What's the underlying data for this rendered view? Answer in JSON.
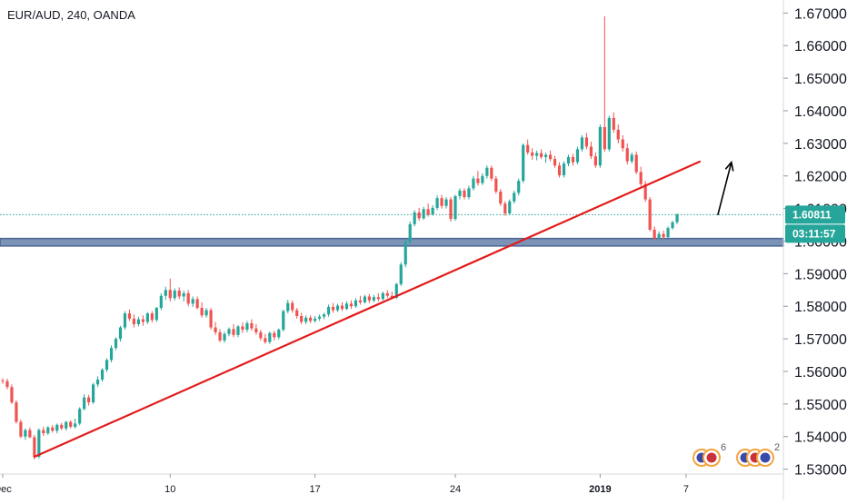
{
  "header": {
    "title": "EUR/AUD, 240, OANDA"
  },
  "colors": {
    "up": "#26a69a",
    "down": "#ef5350",
    "trendline": "#e31b1b",
    "zone": "#7c93b8",
    "zone_border": "#4a6595",
    "last_price_line": "#26a69a",
    "last_price_tag": "#26a69a",
    "countdown_tag": "#26a69a",
    "arrow": "#000000",
    "axis_text": "#131722"
  },
  "chart_data": {
    "type": "candlestick",
    "title": "EUR/AUD, 240, OANDA",
    "xlabel": "",
    "ylabel": "",
    "ylim": [
      1.5285,
      1.674
    ],
    "y_ticks": [
      "1.53000",
      "1.54000",
      "1.55000",
      "1.56000",
      "1.57000",
      "1.58000",
      "1.59000",
      "1.60000",
      "1.61000",
      "1.62000",
      "1.63000",
      "1.64000",
      "1.65000",
      "1.66000",
      "1.67000"
    ],
    "x_ticks": [
      {
        "label": "Dec",
        "bar": 0,
        "bold": false
      },
      {
        "label": "10",
        "bar": 37,
        "bold": false
      },
      {
        "label": "17",
        "bar": 69,
        "bold": false
      },
      {
        "label": "24",
        "bar": 100,
        "bold": false
      },
      {
        "label": "2019",
        "bar": 132,
        "bold": true
      },
      {
        "label": "7",
        "bar": 151,
        "bold": false
      }
    ],
    "last_price": "1.60811",
    "last_price_value": 1.60811,
    "countdown": "03:11:57",
    "support_zone": [
      1.5985,
      1.6008
    ],
    "trendline": {
      "start": {
        "bar": 7,
        "price": 1.5338
      },
      "end": {
        "bar": 154,
        "price": 1.6244
      }
    },
    "forecast_arrow": {
      "start": {
        "bar": 158,
        "price": 1.608
      },
      "end": {
        "bar": 161,
        "price": 1.6242
      }
    },
    "indicator_counts": [
      "6",
      "2"
    ],
    "bars": [
      [
        1.5572,
        1.5579,
        1.5562,
        1.557
      ],
      [
        1.557,
        1.5578,
        1.5545,
        1.5552
      ],
      [
        1.5552,
        1.556,
        1.55,
        1.5505
      ],
      [
        1.5505,
        1.5512,
        1.544,
        1.5445
      ],
      [
        1.5445,
        1.5452,
        1.5395,
        1.54
      ],
      [
        1.54,
        1.5425,
        1.539,
        1.542
      ],
      [
        1.542,
        1.5428,
        1.5395,
        1.5398
      ],
      [
        1.5398,
        1.5405,
        1.533,
        1.5338
      ],
      [
        1.5338,
        1.5425,
        1.5333,
        1.542
      ],
      [
        1.542,
        1.543,
        1.5402,
        1.541
      ],
      [
        1.541,
        1.5432,
        1.5405,
        1.5428
      ],
      [
        1.5428,
        1.5435,
        1.5412,
        1.5418
      ],
      [
        1.5418,
        1.544,
        1.541,
        1.5436
      ],
      [
        1.5436,
        1.5442,
        1.542,
        1.5425
      ],
      [
        1.5425,
        1.5448,
        1.5418,
        1.5445
      ],
      [
        1.5445,
        1.545,
        1.5425,
        1.543
      ],
      [
        1.543,
        1.5455,
        1.5425,
        1.544
      ],
      [
        1.544,
        1.549,
        1.5435,
        1.5485
      ],
      [
        1.5485,
        1.553,
        1.548,
        1.552
      ],
      [
        1.552,
        1.5528,
        1.5495,
        1.5505
      ],
      [
        1.5505,
        1.5565,
        1.55,
        1.556
      ],
      [
        1.556,
        1.5585,
        1.5552,
        1.5575
      ],
      [
        1.5575,
        1.561,
        1.5568,
        1.5605
      ],
      [
        1.5605,
        1.564,
        1.5598,
        1.5635
      ],
      [
        1.5635,
        1.568,
        1.5628,
        1.5672
      ],
      [
        1.5672,
        1.5705,
        1.5665,
        1.57
      ],
      [
        1.57,
        1.574,
        1.5692,
        1.5735
      ],
      [
        1.5735,
        1.5785,
        1.5728,
        1.5778
      ],
      [
        1.5778,
        1.579,
        1.5755,
        1.5762
      ],
      [
        1.5762,
        1.5775,
        1.5735,
        1.5745
      ],
      [
        1.5745,
        1.5768,
        1.5738,
        1.576
      ],
      [
        1.576,
        1.5772,
        1.574,
        1.5752
      ],
      [
        1.5752,
        1.5782,
        1.5745,
        1.5778
      ],
      [
        1.5778,
        1.5785,
        1.575,
        1.5758
      ],
      [
        1.5758,
        1.5798,
        1.5752,
        1.5795
      ],
      [
        1.5795,
        1.584,
        1.5788,
        1.5832
      ],
      [
        1.5832,
        1.586,
        1.582,
        1.585
      ],
      [
        1.585,
        1.5885,
        1.5815,
        1.5825
      ],
      [
        1.5825,
        1.5855,
        1.5818,
        1.5848
      ],
      [
        1.5848,
        1.5858,
        1.5822,
        1.583
      ],
      [
        1.583,
        1.5848,
        1.5815,
        1.584
      ],
      [
        1.584,
        1.585,
        1.58,
        1.5808
      ],
      [
        1.5808,
        1.583,
        1.5798,
        1.5822
      ],
      [
        1.5822,
        1.583,
        1.579,
        1.5795
      ],
      [
        1.5795,
        1.5812,
        1.5765,
        1.5772
      ],
      [
        1.5772,
        1.5795,
        1.5765,
        1.5788
      ],
      [
        1.5788,
        1.5795,
        1.5728,
        1.5735
      ],
      [
        1.5735,
        1.5752,
        1.5712,
        1.572
      ],
      [
        1.572,
        1.573,
        1.569,
        1.5695
      ],
      [
        1.5695,
        1.5722,
        1.5688,
        1.5715
      ],
      [
        1.5715,
        1.5735,
        1.5708,
        1.573
      ],
      [
        1.573,
        1.5745,
        1.5705,
        1.5712
      ],
      [
        1.5712,
        1.5742,
        1.5705,
        1.5738
      ],
      [
        1.5738,
        1.575,
        1.5718,
        1.5728
      ],
      [
        1.5728,
        1.5755,
        1.572,
        1.5748
      ],
      [
        1.5748,
        1.576,
        1.5725,
        1.5732
      ],
      [
        1.5732,
        1.5745,
        1.5712,
        1.572
      ],
      [
        1.572,
        1.5728,
        1.5695,
        1.5702
      ],
      [
        1.5702,
        1.5715,
        1.5685,
        1.569
      ],
      [
        1.569,
        1.5722,
        1.5685,
        1.5718
      ],
      [
        1.5718,
        1.5725,
        1.5695,
        1.5705
      ],
      [
        1.5705,
        1.5732,
        1.5698,
        1.5728
      ],
      [
        1.5728,
        1.579,
        1.5722,
        1.5785
      ],
      [
        1.5785,
        1.582,
        1.5778,
        1.581
      ],
      [
        1.581,
        1.5818,
        1.578,
        1.5788
      ],
      [
        1.5788,
        1.5795,
        1.5762,
        1.577
      ],
      [
        1.577,
        1.578,
        1.5745,
        1.5752
      ],
      [
        1.5752,
        1.5772,
        1.5745,
        1.5765
      ],
      [
        1.5765,
        1.5772,
        1.5748,
        1.5755
      ],
      [
        1.5755,
        1.577,
        1.575,
        1.5762
      ],
      [
        1.5762,
        1.5775,
        1.5755,
        1.5768
      ],
      [
        1.5768,
        1.578,
        1.576,
        1.5775
      ],
      [
        1.5775,
        1.5805,
        1.5768,
        1.5798
      ],
      [
        1.5798,
        1.581,
        1.578,
        1.5788
      ],
      [
        1.5788,
        1.5808,
        1.5782,
        1.5802
      ],
      [
        1.5802,
        1.5812,
        1.5785,
        1.5792
      ],
      [
        1.5792,
        1.5815,
        1.5788,
        1.5808
      ],
      [
        1.5808,
        1.5818,
        1.5792,
        1.58
      ],
      [
        1.58,
        1.5825,
        1.5795,
        1.5818
      ],
      [
        1.5818,
        1.5832,
        1.5805,
        1.5812
      ],
      [
        1.5812,
        1.5835,
        1.5808,
        1.583
      ],
      [
        1.583,
        1.5838,
        1.581,
        1.5818
      ],
      [
        1.5818,
        1.5835,
        1.5812,
        1.5828
      ],
      [
        1.5828,
        1.584,
        1.5815,
        1.5822
      ],
      [
        1.5822,
        1.5845,
        1.5818,
        1.584
      ],
      [
        1.584,
        1.585,
        1.5825,
        1.5832
      ],
      [
        1.5832,
        1.5845,
        1.5822,
        1.5826
      ],
      [
        1.5826,
        1.5872,
        1.5822,
        1.5868
      ],
      [
        1.5868,
        1.5935,
        1.5862,
        1.5928
      ],
      [
        1.5928,
        1.6005,
        1.592,
        1.5998
      ],
      [
        1.5998,
        1.606,
        1.599,
        1.6052
      ],
      [
        1.6052,
        1.6095,
        1.6045,
        1.6088
      ],
      [
        1.6088,
        1.6102,
        1.6062,
        1.607
      ],
      [
        1.607,
        1.6105,
        1.6065,
        1.6098
      ],
      [
        1.6098,
        1.6115,
        1.6075,
        1.6082
      ],
      [
        1.6082,
        1.611,
        1.6078,
        1.6102
      ],
      [
        1.6102,
        1.614,
        1.6095,
        1.6132
      ],
      [
        1.6132,
        1.6142,
        1.61,
        1.6108
      ],
      [
        1.6108,
        1.6135,
        1.61,
        1.6128
      ],
      [
        1.6128,
        1.6135,
        1.606,
        1.6068
      ],
      [
        1.6068,
        1.6142,
        1.6062,
        1.6138
      ],
      [
        1.6138,
        1.6162,
        1.6128,
        1.6155
      ],
      [
        1.6155,
        1.6162,
        1.6128,
        1.6135
      ],
      [
        1.6135,
        1.617,
        1.6128,
        1.6162
      ],
      [
        1.6162,
        1.62,
        1.6155,
        1.6192
      ],
      [
        1.6192,
        1.6215,
        1.617,
        1.6178
      ],
      [
        1.6178,
        1.6208,
        1.6172,
        1.62
      ],
      [
        1.62,
        1.6232,
        1.6192,
        1.6225
      ],
      [
        1.6225,
        1.6232,
        1.6185,
        1.6192
      ],
      [
        1.6192,
        1.62,
        1.6145,
        1.6152
      ],
      [
        1.6152,
        1.616,
        1.6108,
        1.6115
      ],
      [
        1.6115,
        1.6122,
        1.6078,
        1.6085
      ],
      [
        1.6085,
        1.6128,
        1.608,
        1.6122
      ],
      [
        1.6122,
        1.6155,
        1.6115,
        1.6148
      ],
      [
        1.6148,
        1.6192,
        1.614,
        1.6185
      ],
      [
        1.6185,
        1.63,
        1.6178,
        1.6295
      ],
      [
        1.6295,
        1.6312,
        1.6265,
        1.6272
      ],
      [
        1.6272,
        1.6285,
        1.625,
        1.6262
      ],
      [
        1.6262,
        1.6278,
        1.6248,
        1.627
      ],
      [
        1.627,
        1.6282,
        1.6252,
        1.6258
      ],
      [
        1.6258,
        1.6272,
        1.624,
        1.6265
      ],
      [
        1.6265,
        1.6278,
        1.6245,
        1.6252
      ],
      [
        1.6252,
        1.6262,
        1.6225,
        1.6232
      ],
      [
        1.6232,
        1.6242,
        1.6195,
        1.6202
      ],
      [
        1.6202,
        1.6245,
        1.6195,
        1.6238
      ],
      [
        1.6238,
        1.6265,
        1.623,
        1.6258
      ],
      [
        1.6258,
        1.6268,
        1.6232,
        1.6242
      ],
      [
        1.6242,
        1.629,
        1.6235,
        1.6282
      ],
      [
        1.6282,
        1.6325,
        1.6275,
        1.6318
      ],
      [
        1.6318,
        1.6332,
        1.6282,
        1.629
      ],
      [
        1.629,
        1.6305,
        1.6252,
        1.626
      ],
      [
        1.626,
        1.6272,
        1.6225,
        1.6232
      ],
      [
        1.6232,
        1.6358,
        1.6225,
        1.635
      ],
      [
        1.635,
        1.669,
        1.6275,
        1.6282
      ],
      [
        1.6282,
        1.6385,
        1.6275,
        1.6378
      ],
      [
        1.6378,
        1.6395,
        1.6332,
        1.6342
      ],
      [
        1.6342,
        1.6358,
        1.63,
        1.6312
      ],
      [
        1.6312,
        1.6325,
        1.6275,
        1.6285
      ],
      [
        1.6285,
        1.63,
        1.6235,
        1.6245
      ],
      [
        1.6245,
        1.6272,
        1.6238,
        1.6265
      ],
      [
        1.6265,
        1.6275,
        1.6205,
        1.6212
      ],
      [
        1.6212,
        1.6228,
        1.6168,
        1.6175
      ],
      [
        1.6175,
        1.6185,
        1.612,
        1.6128
      ],
      [
        1.6128,
        1.6135,
        1.603,
        1.6035
      ],
      [
        1.6035,
        1.6045,
        1.6005,
        1.6008
      ],
      [
        1.6008,
        1.603,
        1.6002,
        1.6022
      ],
      [
        1.6022,
        1.6032,
        1.6005,
        1.6012
      ],
      [
        1.6012,
        1.6045,
        1.6008,
        1.604
      ],
      [
        1.604,
        1.6062,
        1.6035,
        1.6058
      ],
      [
        1.6058,
        1.6085,
        1.6052,
        1.6081
      ]
    ]
  }
}
